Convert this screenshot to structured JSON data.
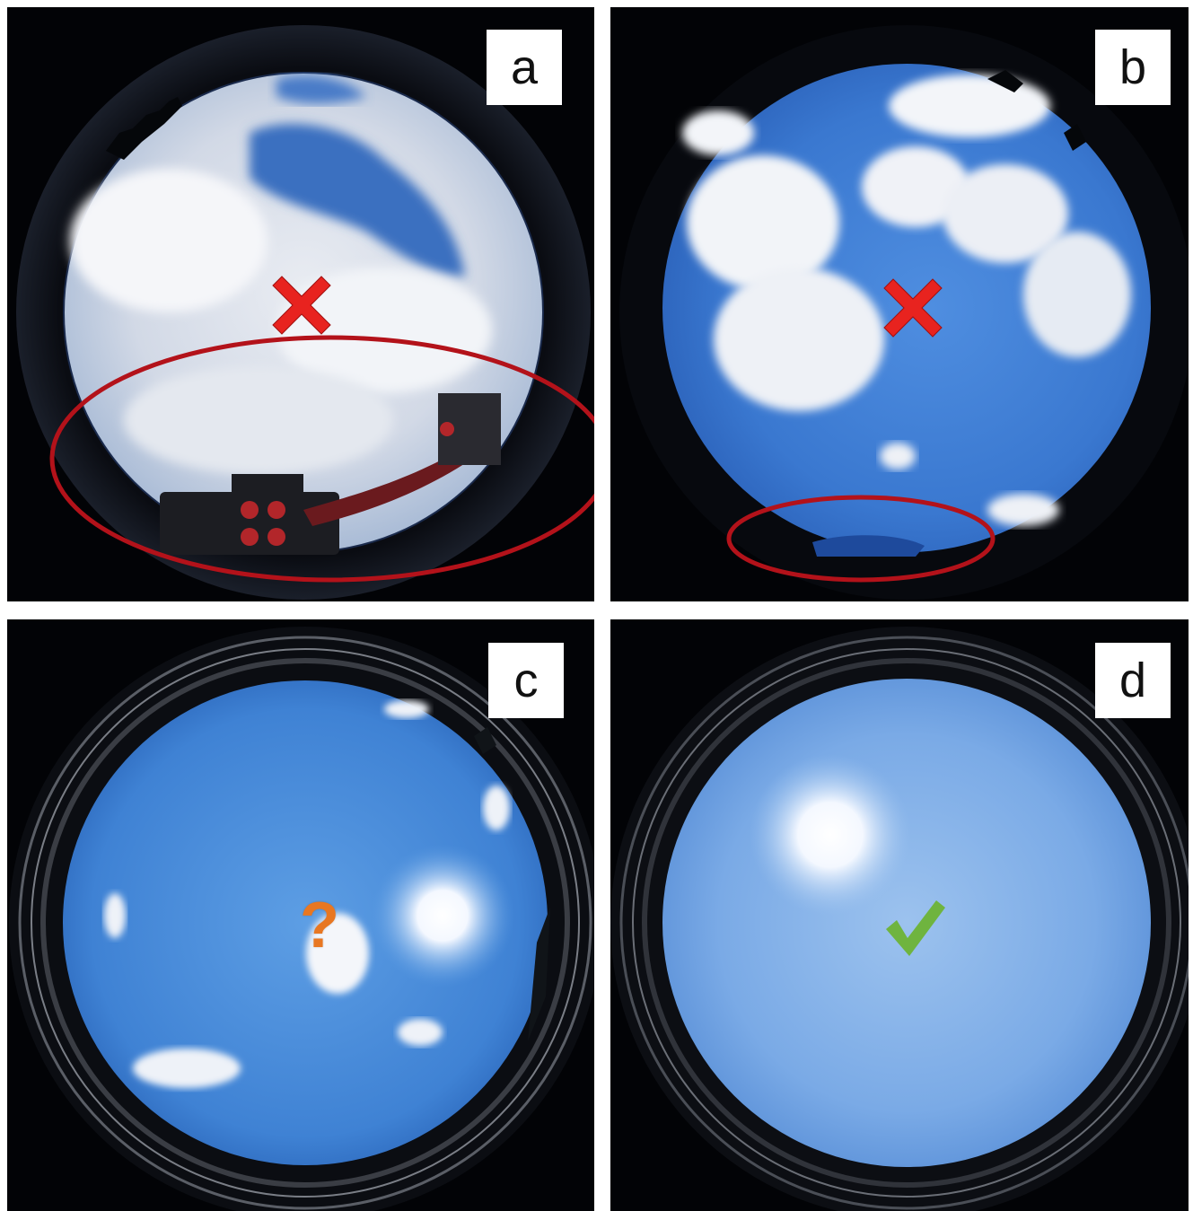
{
  "panels": [
    {
      "label": "a",
      "marker": "cross-mark-icon",
      "circled_region": true
    },
    {
      "label": "b",
      "marker": "cross-mark-icon",
      "circled_region": true
    },
    {
      "label": "c",
      "marker": "question-mark-icon",
      "marker_text": "?"
    },
    {
      "label": "d",
      "marker": "check-mark-icon"
    }
  ],
  "colors": {
    "cross": "#e8231f",
    "ellipse": "#b3121a",
    "question": "#e87722",
    "check": "#6fb43f",
    "frame_background": "#020306"
  }
}
